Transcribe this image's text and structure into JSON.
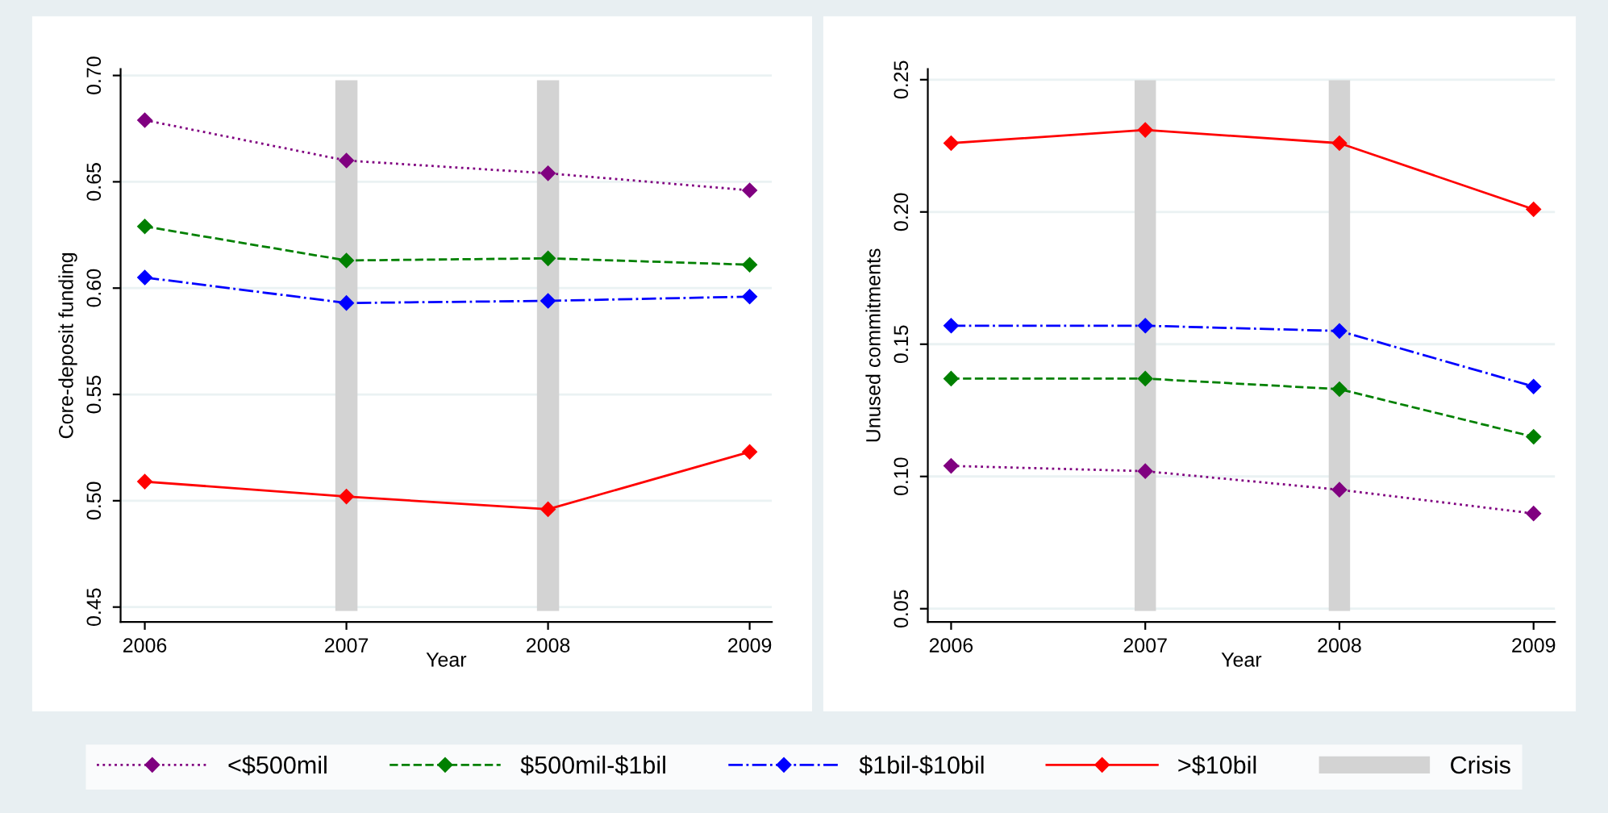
{
  "chart_data": [
    {
      "type": "line",
      "xlabel": "Year",
      "ylabel": "Core-deposit funding",
      "x": [
        2006,
        2007,
        2008,
        2009
      ],
      "xlim": [
        2005.88,
        2009.11
      ],
      "xticks": [
        2006,
        2007,
        2008,
        2009
      ],
      "ylim": [
        0.443,
        0.703
      ],
      "yticks": [
        {
          "value": 0.45,
          "label": "0.45"
        },
        {
          "value": 0.5,
          "label": "0.50"
        },
        {
          "value": 0.55,
          "label": "0.55"
        },
        {
          "value": 0.6,
          "label": "0.60"
        },
        {
          "value": 0.65,
          "label": "0.65"
        },
        {
          "value": 0.7,
          "label": "0.70"
        }
      ],
      "grid": "y",
      "marker": "diamond",
      "legend": "bottom",
      "series": [
        {
          "name": "<$500mil",
          "color": "#800080",
          "line_style": "dotted",
          "values": [
            0.679,
            0.66,
            0.654,
            0.646
          ]
        },
        {
          "name": "$500mil-$1bil",
          "color": "#008000",
          "line_style": "dashed",
          "values": [
            0.629,
            0.613,
            0.614,
            0.611
          ]
        },
        {
          "name": "$1bil-$10bil",
          "color": "#0000ff",
          "line_style": "dashdot",
          "values": [
            0.605,
            0.593,
            0.594,
            0.596
          ]
        },
        {
          "name": ">$10bil",
          "color": "#ff0000",
          "line_style": "solid",
          "values": [
            0.509,
            0.502,
            0.496,
            0.523
          ]
        }
      ],
      "bands": [
        {
          "axis": "x",
          "from": 2006.945,
          "to": 2007.055,
          "label": "Crisis",
          "color": "#d3d3d3"
        },
        {
          "axis": "x",
          "from": 2007.945,
          "to": 2008.055,
          "color": "#d3d3d3"
        }
      ]
    },
    {
      "type": "line",
      "xlabel": "Year",
      "ylabel": "Unused commitments",
      "x": [
        2006,
        2007,
        2008,
        2009
      ],
      "xlim": [
        2005.88,
        2009.11
      ],
      "xticks": [
        2006,
        2007,
        2008,
        2009
      ],
      "ylim": [
        0.045,
        0.254
      ],
      "yticks": [
        {
          "value": 0.05,
          "label": "0.05"
        },
        {
          "value": 0.1,
          "label": "0.10"
        },
        {
          "value": 0.15,
          "label": "0.15"
        },
        {
          "value": 0.2,
          "label": "0.20"
        },
        {
          "value": 0.25,
          "label": "0.25"
        }
      ],
      "grid": "y",
      "marker": "diamond",
      "series": [
        {
          "name": "<$500mil",
          "color": "#800080",
          "line_style": "dotted",
          "values": [
            0.104,
            0.102,
            0.095,
            0.086
          ]
        },
        {
          "name": "$500mil-$1bil",
          "color": "#008000",
          "line_style": "dashed",
          "values": [
            0.137,
            0.137,
            0.133,
            0.115
          ]
        },
        {
          "name": "$1bil-$10bil",
          "color": "#0000ff",
          "line_style": "dashdot",
          "values": [
            0.157,
            0.157,
            0.155,
            0.134
          ]
        },
        {
          "name": ">$10bil",
          "color": "#ff0000",
          "line_style": "solid",
          "values": [
            0.226,
            0.231,
            0.226,
            0.201
          ]
        }
      ],
      "bands": [
        {
          "axis": "x",
          "from": 2006.945,
          "to": 2007.055,
          "color": "#d3d3d3"
        },
        {
          "axis": "x",
          "from": 2007.945,
          "to": 2008.055,
          "color": "#d3d3d3"
        }
      ]
    }
  ]
}
